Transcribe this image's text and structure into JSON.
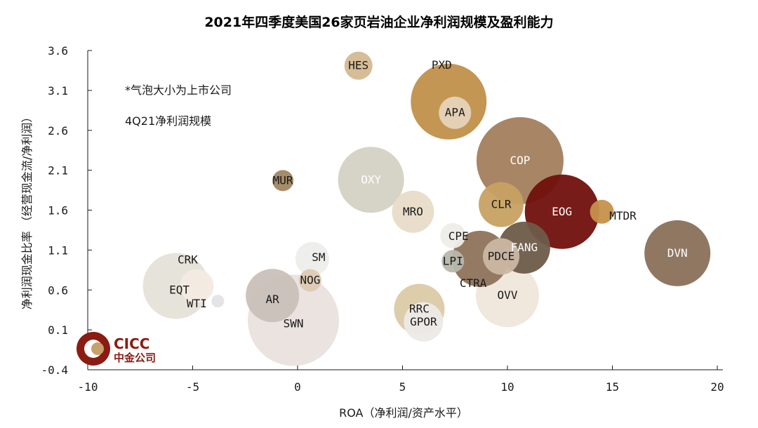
{
  "chart_data": {
    "type": "scatter",
    "subtype": "bubble",
    "title": "2021年四季度美国26家页岩油企业净利润规模及盈利能力",
    "xlabel": "ROA（净利润/资产水平）",
    "ylabel": "净利润现金比率 （经营现金流/净利润）",
    "xlim": [
      -10,
      20
    ],
    "ylim": [
      -0.4,
      3.6
    ],
    "xticks": [
      -10,
      -5,
      0,
      5,
      10,
      15,
      20
    ],
    "yticks": [
      -0.4,
      0.1,
      0.6,
      1.1,
      1.6,
      2.1,
      2.6,
      3.1,
      3.6
    ],
    "ytick_labels": [
      "-0.4",
      "0.1",
      "0.6",
      "1.1",
      "1.6",
      "2.1",
      "2.6",
      "3.1",
      "3.6"
    ],
    "grid": false,
    "annotations": [
      "*气泡大小为上市公司",
      "4Q21净利润规模"
    ],
    "series": [
      {
        "name": "SWN",
        "x": -0.2,
        "y": 0.22,
        "size": 65,
        "color": "#e9e2de"
      },
      {
        "name": "EQT",
        "x": -5.8,
        "y": 0.65,
        "size": 47,
        "color": "#e5e3d8"
      },
      {
        "name": "WTI",
        "x": -3.8,
        "y": 0.46,
        "size": 9,
        "color": "#e3e3e3"
      },
      {
        "name": "CRK",
        "x": -4.8,
        "y": 0.65,
        "size": 24,
        "color": "#f3ebe3"
      },
      {
        "name": "AR",
        "x": -1.2,
        "y": 0.53,
        "size": 38,
        "color": "#c9c0b9"
      },
      {
        "name": "SM",
        "x": 0.7,
        "y": 0.99,
        "size": 24,
        "color": "#ededeb"
      },
      {
        "name": "NOG",
        "x": 0.6,
        "y": 0.72,
        "size": 16,
        "color": "#dcc9b2"
      },
      {
        "name": "MUR",
        "x": -0.7,
        "y": 1.97,
        "size": 15,
        "color": "#a08761"
      },
      {
        "name": "HES",
        "x": 2.9,
        "y": 3.41,
        "size": 20,
        "color": "#d5b991"
      },
      {
        "name": "OXY",
        "x": 3.5,
        "y": 1.98,
        "size": 47,
        "color": "#d3d2c3"
      },
      {
        "name": "MRO",
        "x": 5.5,
        "y": 1.58,
        "size": 30,
        "color": "#e8dcc8"
      },
      {
        "name": "RRC",
        "x": 5.8,
        "y": 0.36,
        "size": 36,
        "color": "#dccaa6"
      },
      {
        "name": "GPOR",
        "x": 6.0,
        "y": 0.2,
        "size": 28,
        "color": "#eceae7"
      },
      {
        "name": "PXD",
        "x": 7.2,
        "y": 2.96,
        "size": 54,
        "color": "#c1904a"
      },
      {
        "name": "APA",
        "x": 7.5,
        "y": 2.82,
        "size": 23,
        "color": "#e6d3b9"
      },
      {
        "name": "CPE",
        "x": 7.4,
        "y": 1.28,
        "size": 18,
        "color": "#eeede8"
      },
      {
        "name": "LPI",
        "x": 7.4,
        "y": 0.96,
        "size": 16,
        "color": "#b8b7ac"
      },
      {
        "name": "CTRA",
        "x": 8.7,
        "y": 0.99,
        "size": 40,
        "color": "#8e735b"
      },
      {
        "name": "PDCE",
        "x": 9.7,
        "y": 1.02,
        "size": 26,
        "color": "#cbb7a3"
      },
      {
        "name": "OVV",
        "x": 10.0,
        "y": 0.53,
        "size": 45,
        "color": "#efe6db"
      },
      {
        "name": "FANG",
        "x": 10.8,
        "y": 1.13,
        "size": 37,
        "color": "#6e5b49"
      },
      {
        "name": "COP",
        "x": 10.6,
        "y": 2.22,
        "size": 62,
        "color": "#a27e5d"
      },
      {
        "name": "CLR",
        "x": 9.7,
        "y": 1.67,
        "size": 32,
        "color": "#c7a162"
      },
      {
        "name": "EOG",
        "x": 12.6,
        "y": 1.58,
        "size": 53,
        "color": "#70100c"
      },
      {
        "name": "MTDR",
        "x": 14.5,
        "y": 1.58,
        "size": 17,
        "color": "#c6914a"
      },
      {
        "name": "DVN",
        "x": 18.1,
        "y": 1.06,
        "size": 47,
        "color": "#8a7058"
      }
    ]
  },
  "logo": {
    "mark_text": "CICC",
    "sub_text": "中金公司",
    "color": "#8b1c13"
  }
}
